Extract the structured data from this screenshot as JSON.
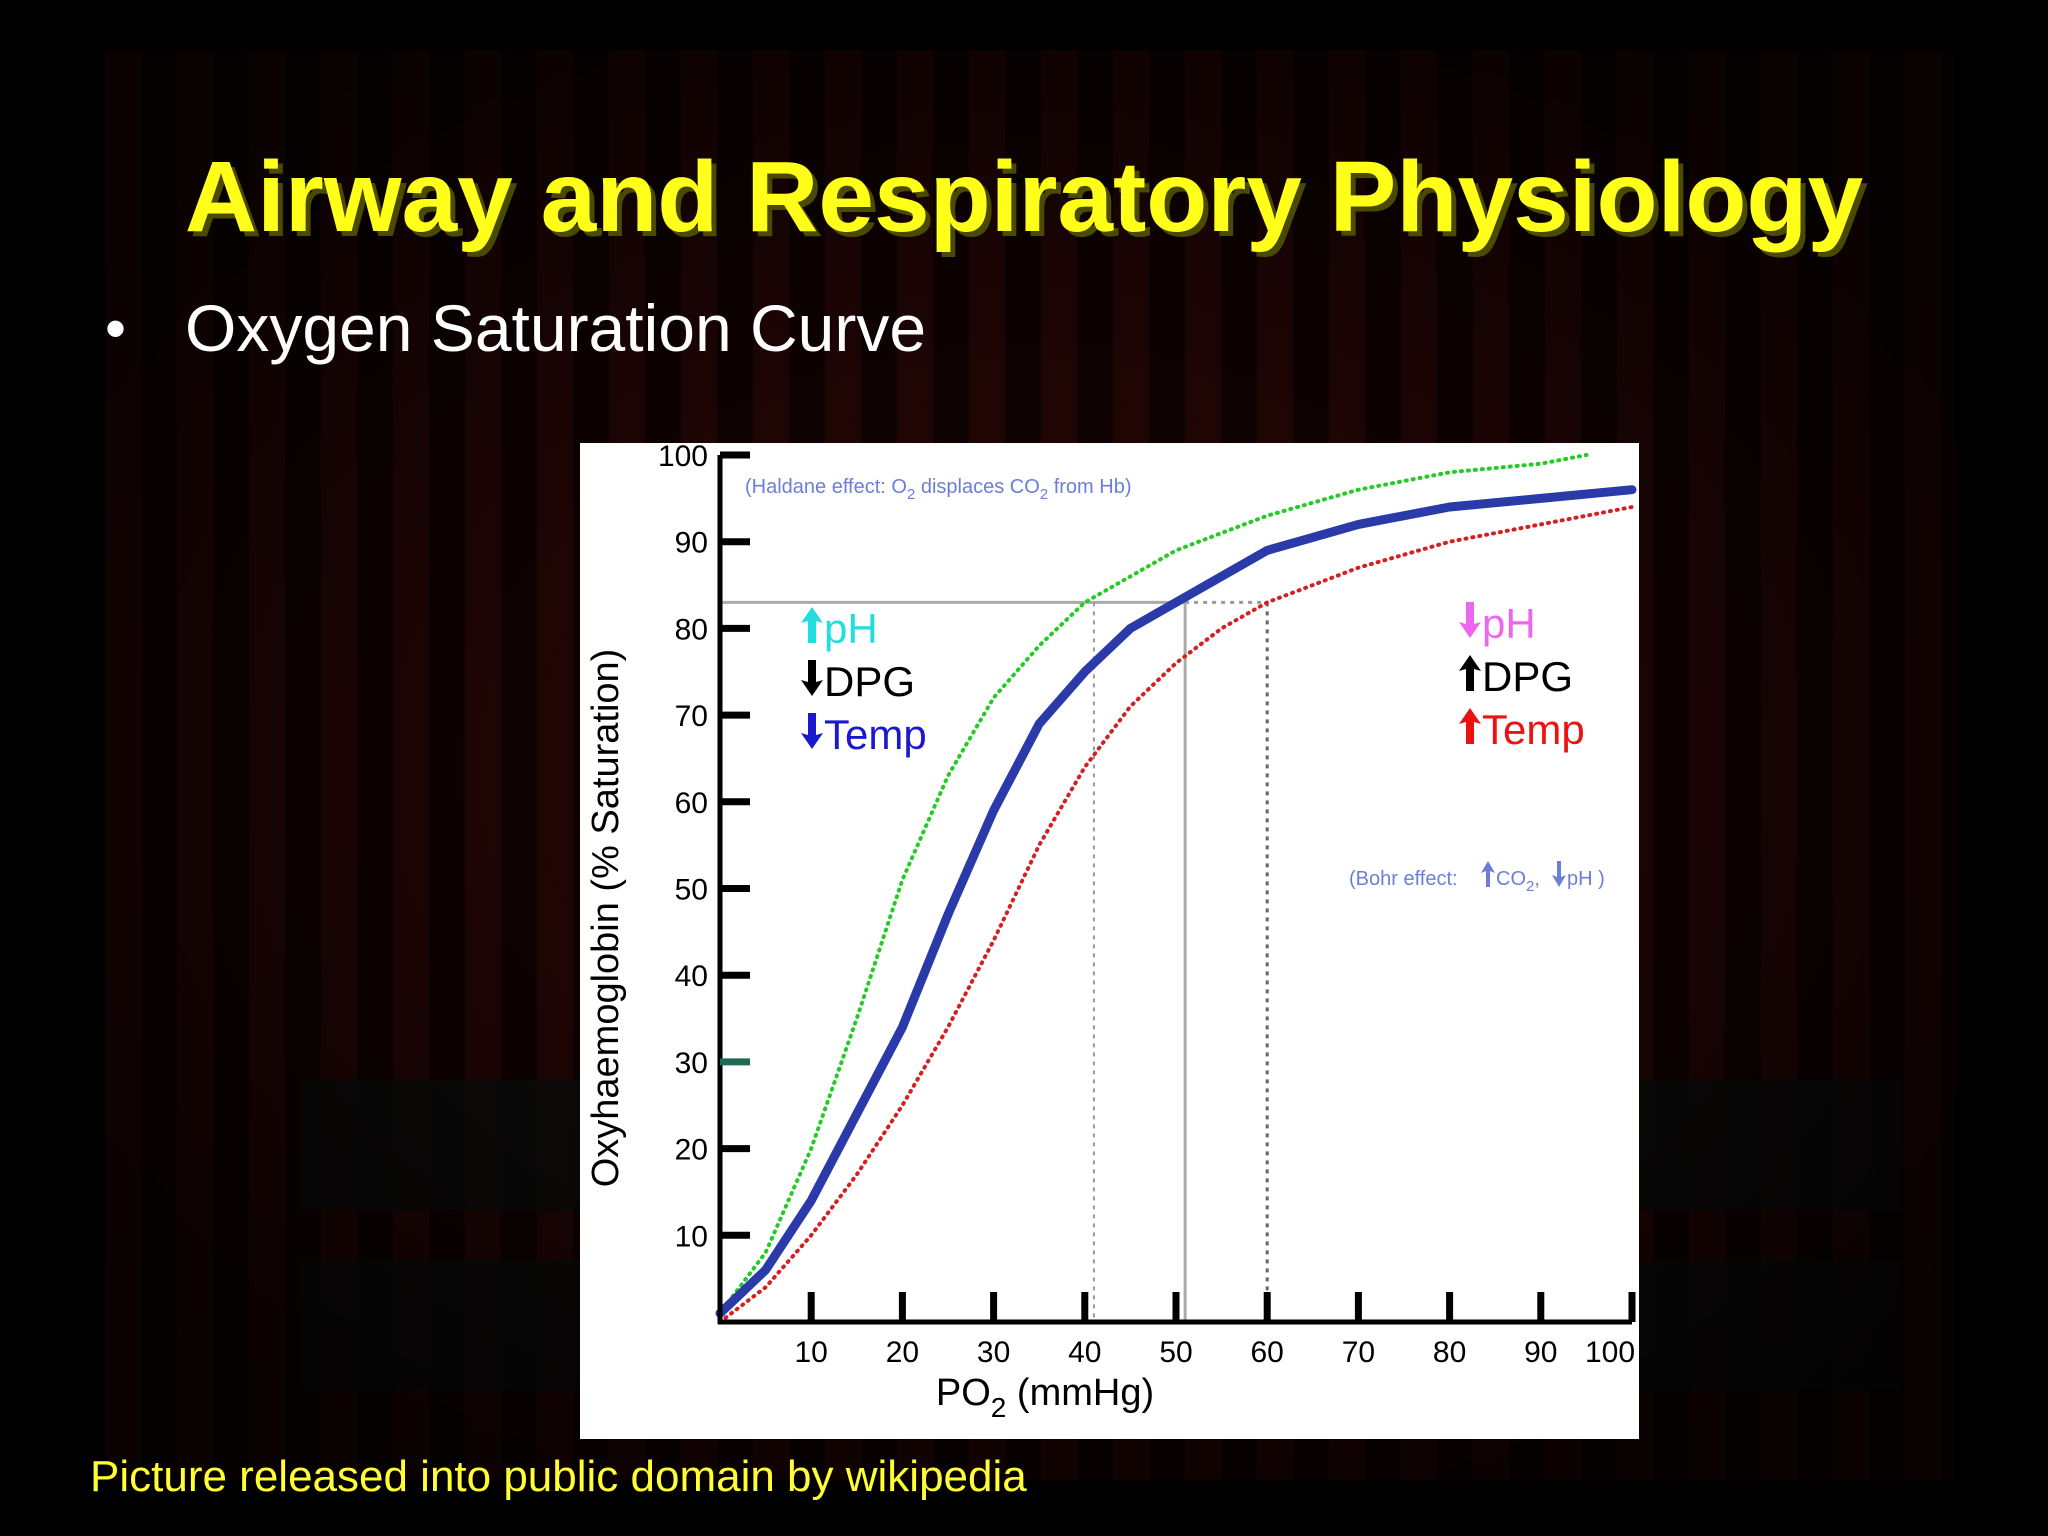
{
  "slide": {
    "title": "Airway and Respiratory Physiology",
    "bullet": "Oxygen Saturation Curve",
    "credit": "Picture released into public domain by wikipedia"
  },
  "chart_data": {
    "type": "line",
    "xlabel_main": "PO",
    "xlabel_sub": "2",
    "xlabel_unit": " (mmHg)",
    "ylabel": "Oxyhaemoglobin (% Saturation)",
    "xlim": [
      0,
      100
    ],
    "ylim": [
      0,
      100
    ],
    "x_ticks": [
      10,
      20,
      30,
      40,
      50,
      60,
      70,
      80,
      90,
      100
    ],
    "y_ticks": [
      10,
      20,
      30,
      40,
      50,
      60,
      70,
      80,
      90,
      100
    ],
    "grid": false,
    "series": [
      {
        "style": "dotted",
        "color": "#22cc22",
        "x": [
          0,
          5,
          10,
          15,
          20,
          25,
          30,
          35,
          40,
          45,
          50,
          55,
          60,
          70,
          80,
          90,
          95
        ],
        "y": [
          1,
          8,
          20,
          35,
          51,
          63,
          72,
          78,
          83,
          86,
          89,
          91,
          93,
          96,
          98,
          99,
          100
        ]
      },
      {
        "style": "solid",
        "color": "#2a3aa8",
        "x": [
          0,
          5,
          10,
          15,
          20,
          25,
          30,
          35,
          40,
          45,
          50,
          55,
          60,
          70,
          80,
          90,
          100
        ],
        "y": [
          1,
          6,
          14,
          24,
          34,
          47,
          59,
          69,
          75,
          80,
          83,
          86,
          89,
          92,
          94,
          95,
          96
        ]
      },
      {
        "style": "dotted",
        "color": "#d42020",
        "x": [
          0,
          5,
          10,
          15,
          20,
          25,
          30,
          35,
          40,
          45,
          50,
          55,
          60,
          70,
          80,
          90,
          100
        ],
        "y": [
          0,
          4,
          10,
          17,
          25,
          34,
          44,
          55,
          64,
          71,
          76,
          80,
          83,
          87,
          90,
          92,
          94
        ]
      }
    ],
    "reference": {
      "saturation": 83,
      "po2_left": 41,
      "po2_center": 51,
      "po2_right": 60
    },
    "annotations": {
      "haldane": {
        "prefix": "(Haldane effect: O",
        "sub1": "2",
        "mid": " displaces CO",
        "sub2": "2",
        "suffix": " from Hb)"
      },
      "left_shift": [
        {
          "arrow": "up",
          "text": "pH",
          "color": "#22dddd"
        },
        {
          "arrow": "down",
          "text": "DPG",
          "color": "#000000"
        },
        {
          "arrow": "down",
          "text": "Temp",
          "color": "#1a1acc"
        }
      ],
      "right_shift": [
        {
          "arrow": "down",
          "text": "pH",
          "color": "#ee66ee"
        },
        {
          "arrow": "up",
          "text": "DPG",
          "color": "#000000"
        },
        {
          "arrow": "up",
          "text": "Temp",
          "color": "#ee1111"
        }
      ],
      "bohr": {
        "prefix": "(Bohr effect:",
        "co2_main": " CO",
        "co2_sub": "2",
        "comma": ",",
        "ph": "pH",
        "suffix": " )"
      }
    }
  }
}
